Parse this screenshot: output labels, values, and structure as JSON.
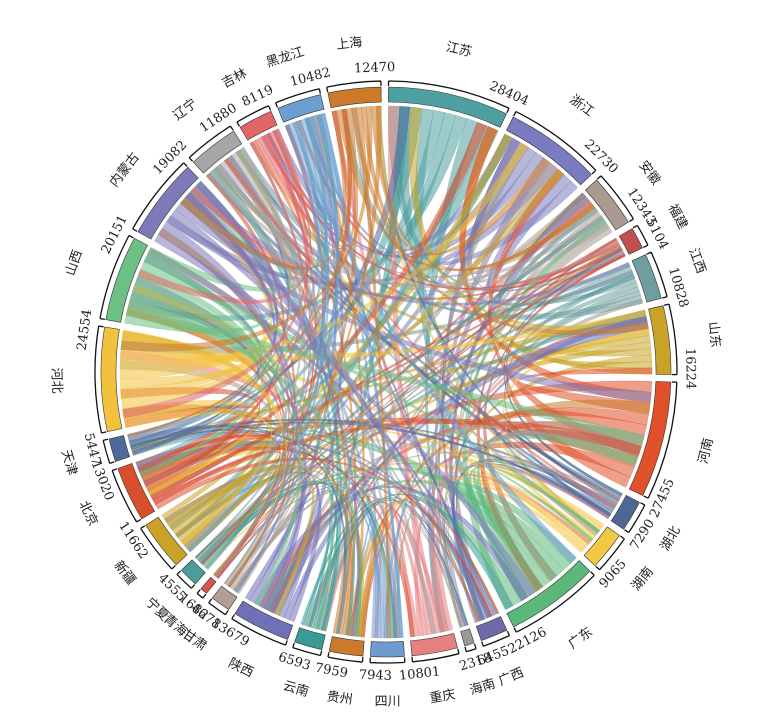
{
  "chart_data": {
    "type": "chord",
    "categories": [
      "江苏",
      "浙江",
      "安徽",
      "福建",
      "江西",
      "山东",
      "河南",
      "湖北",
      "湖南",
      "广东",
      "广西",
      "海南",
      "重庆",
      "四川",
      "贵州",
      "云南",
      "陕西",
      "甘肃",
      "青海",
      "宁夏",
      "新疆",
      "北京",
      "天津",
      "河北",
      "山西",
      "内蒙古",
      "辽宁",
      "吉林",
      "黑龙江",
      "上海"
    ],
    "values": [
      28404,
      22730,
      12343,
      5104,
      10828,
      16224,
      27455,
      7290,
      9065,
      22126,
      6455,
      2318,
      10801,
      7943,
      7959,
      6593,
      13679,
      4678,
      1682,
      4555,
      11662,
      13020,
      5447,
      24554,
      20151,
      19082,
      11880,
      8119,
      10482,
      12470
    ],
    "colors": [
      "#4e9f9f",
      "#7b7bc0",
      "#a89a90",
      "#c0504d",
      "#6f9e9e",
      "#c9a227",
      "#e0502a",
      "#4f6796",
      "#f2c744",
      "#5cb87a",
      "#6e6aa8",
      "#999999",
      "#e58080",
      "#6f9bcf",
      "#cc7a2a",
      "#3a9a94",
      "#7070b8",
      "#b29f92",
      "#d9534f",
      "#4d9b9b",
      "#c9a227",
      "#d94f2b",
      "#4e6a9a",
      "#f2c23e",
      "#6cc083",
      "#7e7ab8",
      "#a6a6a6",
      "#e06666",
      "#6a9fd0",
      "#cc7a2a"
    ]
  }
}
